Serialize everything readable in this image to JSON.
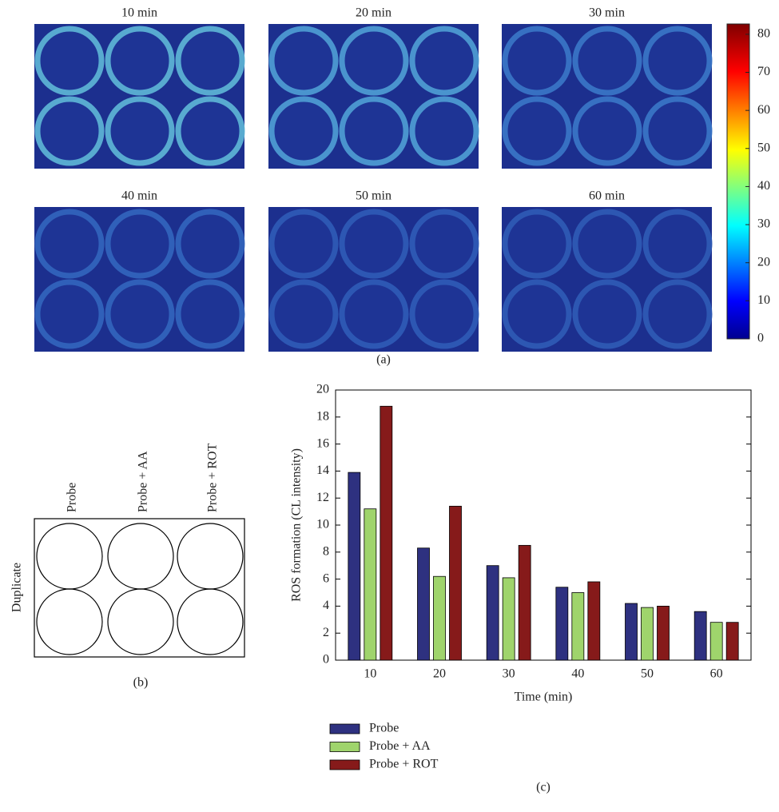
{
  "chart_data": [
    {
      "type": "colorbar",
      "panel_titles": [
        "10 min",
        "20 min",
        "30 min",
        "40 min",
        "50 min",
        "60 min"
      ],
      "panel_label": "(a)",
      "ylim": [
        0,
        82.7
      ],
      "yticks": [
        0,
        10,
        20,
        30,
        40,
        50,
        60,
        70,
        80
      ]
    },
    {
      "type": "plate",
      "columns": [
        "Probe",
        "Probe + AA",
        "Probe + ROT"
      ],
      "row_label": "Duplicate",
      "panel_label": "(b)"
    },
    {
      "type": "bar",
      "categories": [
        "10",
        "20",
        "30",
        "40",
        "50",
        "60"
      ],
      "series": [
        {
          "name": "Probe",
          "color": "#2e3180",
          "values": [
            13.9,
            8.3,
            7.0,
            5.4,
            4.2,
            3.6
          ]
        },
        {
          "name": "Probe + AA",
          "color": "#9fd46c",
          "values": [
            11.2,
            6.2,
            6.1,
            5.0,
            3.9,
            2.8
          ]
        },
        {
          "name": "Probe + ROT",
          "color": "#861a1a",
          "values": [
            18.8,
            11.4,
            8.5,
            5.8,
            4.0,
            2.8
          ]
        }
      ],
      "xlabel": "Time (min)",
      "ylabel": "ROS formation (CL intensity)",
      "ylim": [
        0,
        20
      ],
      "yticks": [
        0,
        2,
        4,
        6,
        8,
        10,
        12,
        14,
        16,
        18,
        20
      ],
      "legend": "bottom-left",
      "panel_label": "(c)"
    }
  ]
}
